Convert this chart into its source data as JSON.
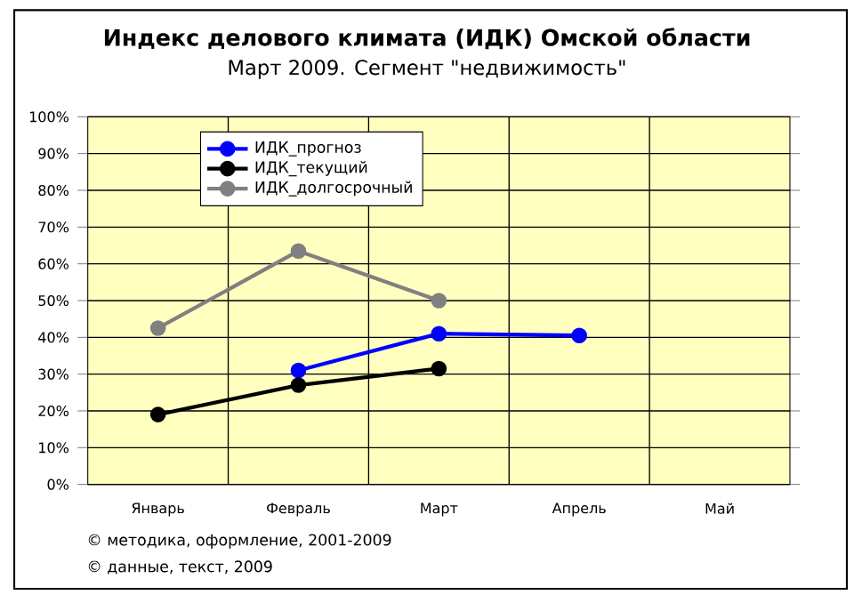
{
  "chart_data": {
    "type": "line",
    "title": "Индекс делового климата (ИДК) Омской области",
    "subtitle": "Март 2009. Сегмент \"недвижимость\"",
    "categories": [
      "Январь",
      "Февраль",
      "Март",
      "Апрель",
      "Май"
    ],
    "series": [
      {
        "name": "ИДК_прогноз",
        "color": "#0000ff",
        "values": [
          null,
          31,
          41,
          40.5,
          null
        ]
      },
      {
        "name": "ИДК_текущий",
        "color": "#000000",
        "values": [
          19,
          27,
          31.5,
          null,
          null
        ]
      },
      {
        "name": "ИДК_долгосрочный",
        "color": "#808080",
        "values": [
          42.5,
          63.5,
          50,
          null,
          null
        ]
      }
    ],
    "ylim": [
      0,
      100
    ],
    "yticks": [
      {
        "value": 0,
        "label": "0%"
      },
      {
        "value": 10,
        "label": "10%"
      },
      {
        "value": 20,
        "label": "20%"
      },
      {
        "value": 30,
        "label": "30%"
      },
      {
        "value": 40,
        "label": "40%"
      },
      {
        "value": 50,
        "label": "50%"
      },
      {
        "value": 60,
        "label": "60%"
      },
      {
        "value": 70,
        "label": "70%"
      },
      {
        "value": 80,
        "label": "80%"
      },
      {
        "value": 90,
        "label": "90%"
      },
      {
        "value": 100,
        "label": "100%"
      }
    ],
    "grid": true,
    "legend": "top left",
    "marker": "circle",
    "line_style": "solid",
    "annotations": [
      "© методика, оформление, 2001-2009",
      "© данные, текст, 2009"
    ]
  }
}
